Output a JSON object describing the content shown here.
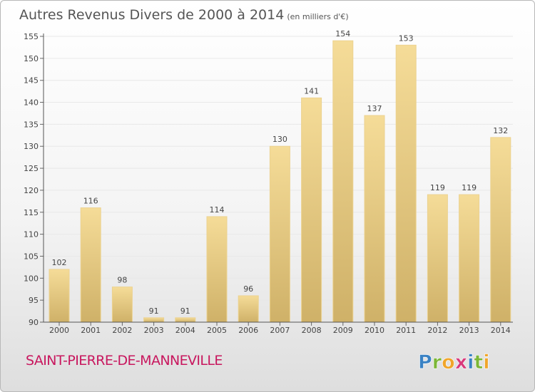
{
  "header": {
    "title": "Autres Revenus Divers de 2000 à 2014",
    "unit": "(en milliers d'€)"
  },
  "footer": {
    "commune": "SAINT-PIERRE-DE-MANNEVILLE",
    "logo_text": "Proxiti"
  },
  "colors": {
    "bar_top": "#f5dc98",
    "bar_bottom": "#cfb168",
    "bar_stroke": "#ecd290",
    "text": "#555555",
    "commune": "#c8175e",
    "grid": "#e8e8e8"
  },
  "chart_data": {
    "type": "bar",
    "title": "Autres Revenus Divers de 2000 à 2014",
    "subtitle": "(en milliers d'€)",
    "categories": [
      "2000",
      "2001",
      "2002",
      "2003",
      "2004",
      "2005",
      "2006",
      "2007",
      "2008",
      "2009",
      "2010",
      "2011",
      "2012",
      "2013",
      "2014"
    ],
    "values": [
      102,
      116,
      98,
      91,
      91,
      114,
      96,
      130,
      141,
      154,
      137,
      153,
      119,
      119,
      132
    ],
    "ylim": [
      90,
      155
    ],
    "yticks": [
      90,
      95,
      100,
      105,
      110,
      115,
      120,
      125,
      130,
      135,
      140,
      145,
      150,
      155
    ],
    "grid": true,
    "data_labels": true,
    "xlabel": "",
    "ylabel": ""
  }
}
